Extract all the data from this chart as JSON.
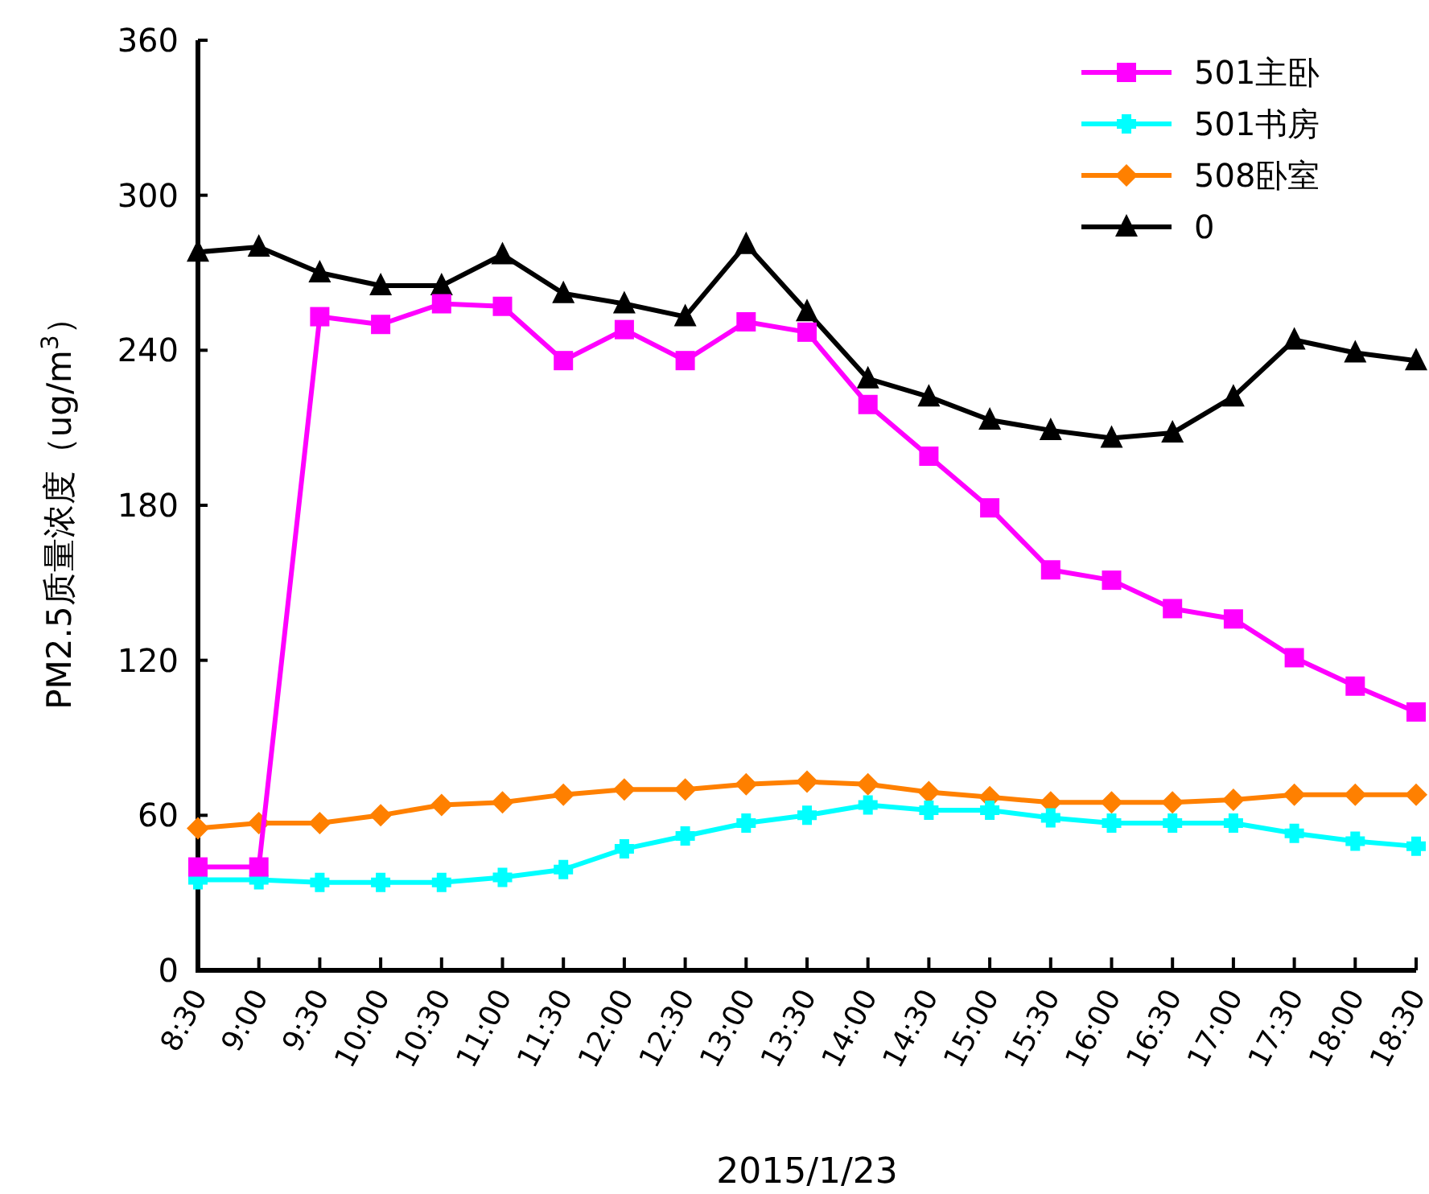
{
  "chart_data": {
    "type": "line",
    "xlabel": "2015/1/23",
    "ylabel": "PM2.5质量浓度（ug/m$^{3}$）",
    "categories": [
      "8:30",
      "9:00",
      "9:30",
      "10:00",
      "10:30",
      "11:00",
      "11:30",
      "12:00",
      "12:30",
      "13:00",
      "13:30",
      "14:00",
      "14:30",
      "15:00",
      "15:30",
      "16:00",
      "16:30",
      "17:00",
      "17:30",
      "18:00",
      "18:30"
    ],
    "ylim": [
      0,
      360
    ],
    "yticks": [
      0,
      60,
      120,
      180,
      240,
      300,
      360
    ],
    "grid": false,
    "legend": "top right",
    "series": [
      {
        "name": "501主卧",
        "color": "#ff00ff",
        "marker": "square",
        "values": [
          40,
          40,
          253,
          250,
          258,
          257,
          236,
          248,
          236,
          251,
          247,
          219,
          199,
          179,
          155,
          151,
          140,
          136,
          121,
          110,
          100
        ]
      },
      {
        "name": "501书房",
        "color": "#00ffff",
        "marker": "cross",
        "values": [
          35,
          35,
          34,
          34,
          34,
          36,
          39,
          47,
          52,
          57,
          60,
          64,
          62,
          62,
          59,
          57,
          57,
          57,
          53,
          50,
          48
        ]
      },
      {
        "name": "508卧室",
        "color": "#ff8000",
        "marker": "diamond",
        "values": [
          55,
          57,
          57,
          60,
          64,
          65,
          68,
          70,
          70,
          72,
          73,
          72,
          69,
          67,
          65,
          65,
          65,
          66,
          68,
          68,
          68
        ]
      },
      {
        "name": "0",
        "color": "#000000",
        "marker": "triangle",
        "values": [
          278,
          280,
          270,
          265,
          265,
          277,
          262,
          258,
          253,
          281,
          255,
          229,
          222,
          213,
          209,
          206,
          208,
          222,
          244,
          239,
          236
        ]
      }
    ]
  }
}
